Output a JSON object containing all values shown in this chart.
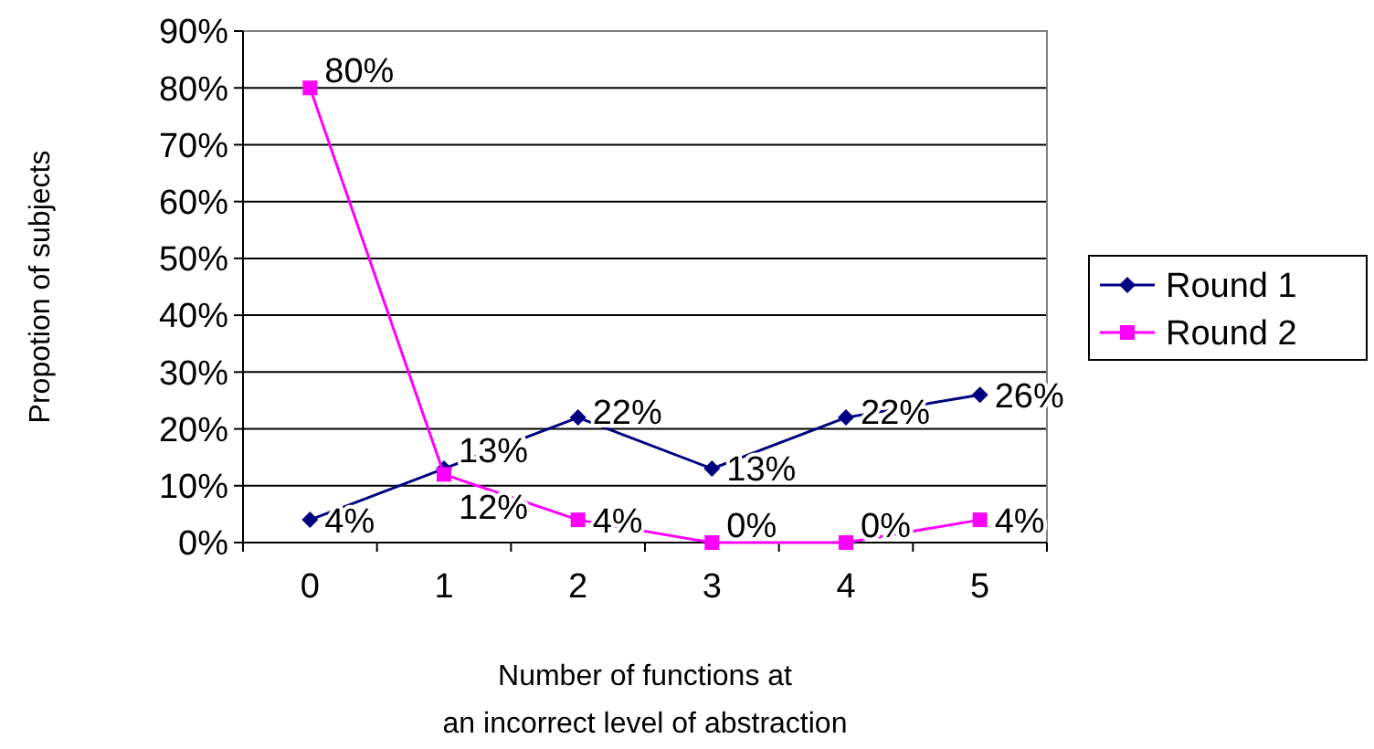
{
  "chart_data": {
    "type": "line",
    "xlabel": "Number of functions at\nan incorrect level of abstraction",
    "ylabel": "Propotion of subjects",
    "categories": [
      "0",
      "1",
      "2",
      "3",
      "4",
      "5"
    ],
    "series": [
      {
        "name": "Round 1",
        "color": "#000080",
        "marker": "diamond",
        "values": [
          4,
          13,
          22,
          13,
          22,
          26
        ],
        "value_labels": [
          "4%",
          "13%",
          "22%",
          "13%",
          "22%",
          "26%"
        ]
      },
      {
        "name": "Round 2",
        "color": "#ff00ff",
        "marker": "square",
        "values": [
          80,
          12,
          4,
          0,
          0,
          4
        ],
        "value_labels": [
          "80%",
          "12%",
          "4%",
          "0%",
          "0%",
          "4%"
        ]
      }
    ],
    "ylim": [
      0,
      90
    ],
    "yticks": [
      {
        "value": 0,
        "label": "0%"
      },
      {
        "value": 10,
        "label": "10%"
      },
      {
        "value": 20,
        "label": "20%"
      },
      {
        "value": 30,
        "label": "30%"
      },
      {
        "value": 40,
        "label": "40%"
      },
      {
        "value": 50,
        "label": "50%"
      },
      {
        "value": 60,
        "label": "60%"
      },
      {
        "value": 70,
        "label": "70%"
      },
      {
        "value": 80,
        "label": "80%"
      },
      {
        "value": 90,
        "label": "90%"
      }
    ],
    "grid": "y",
    "legend": "right"
  }
}
